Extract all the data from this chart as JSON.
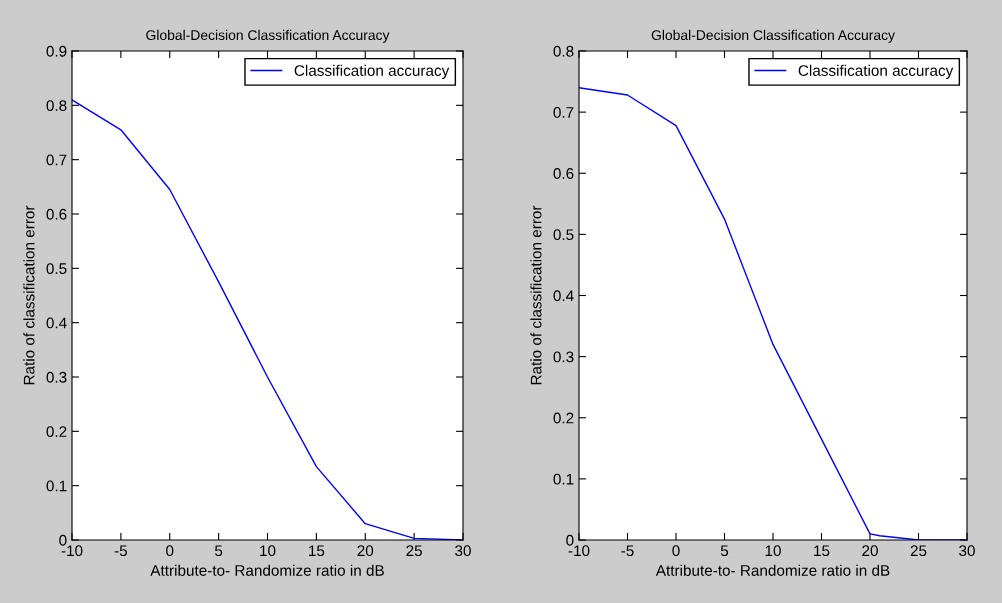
{
  "chart_data": [
    {
      "type": "line",
      "title": "Global-Decision Classification Accuracy",
      "xlabel": "Attribute-to- Randomize ratio in dB",
      "ylabel": "Ratio of classification error",
      "x": [
        -10,
        -5,
        0,
        5,
        10,
        15,
        20,
        25,
        30
      ],
      "series": [
        {
          "name": "Classification accuracy",
          "color": "#0000ff",
          "values": [
            0.81,
            0.755,
            0.645,
            0.475,
            0.3,
            0.135,
            0.03,
            0.003,
            0
          ]
        }
      ],
      "xlim": [
        -10,
        30
      ],
      "xticks": [
        -10,
        -5,
        0,
        5,
        10,
        15,
        20,
        25,
        30
      ],
      "ylim": [
        0,
        0.9
      ],
      "yticks": [
        0,
        0.1,
        0.2,
        0.3,
        0.4,
        0.5,
        0.6,
        0.7,
        0.8,
        0.9
      ],
      "legend": "top right",
      "grid": false
    },
    {
      "type": "line",
      "title": "Global-Decision Classification Accuracy",
      "xlabel": "Attribute-to- Randomize ratio in dB",
      "ylabel": "Ratio of classification error",
      "x": [
        -10,
        -5,
        0,
        5,
        10,
        15,
        20,
        21,
        25,
        30
      ],
      "series": [
        {
          "name": "Classification accuracy",
          "color": "#0000ff",
          "values": [
            0.74,
            0.728,
            0.678,
            0.525,
            0.32,
            0.165,
            0.01,
            0.007,
            0,
            0
          ]
        }
      ],
      "xlim": [
        -10,
        30
      ],
      "xticks": [
        -10,
        -5,
        0,
        5,
        10,
        15,
        20,
        25,
        30
      ],
      "ylim": [
        0,
        0.8
      ],
      "yticks": [
        0,
        0.1,
        0.2,
        0.3,
        0.4,
        0.5,
        0.6,
        0.7,
        0.8
      ],
      "legend": "top right",
      "grid": false
    }
  ]
}
